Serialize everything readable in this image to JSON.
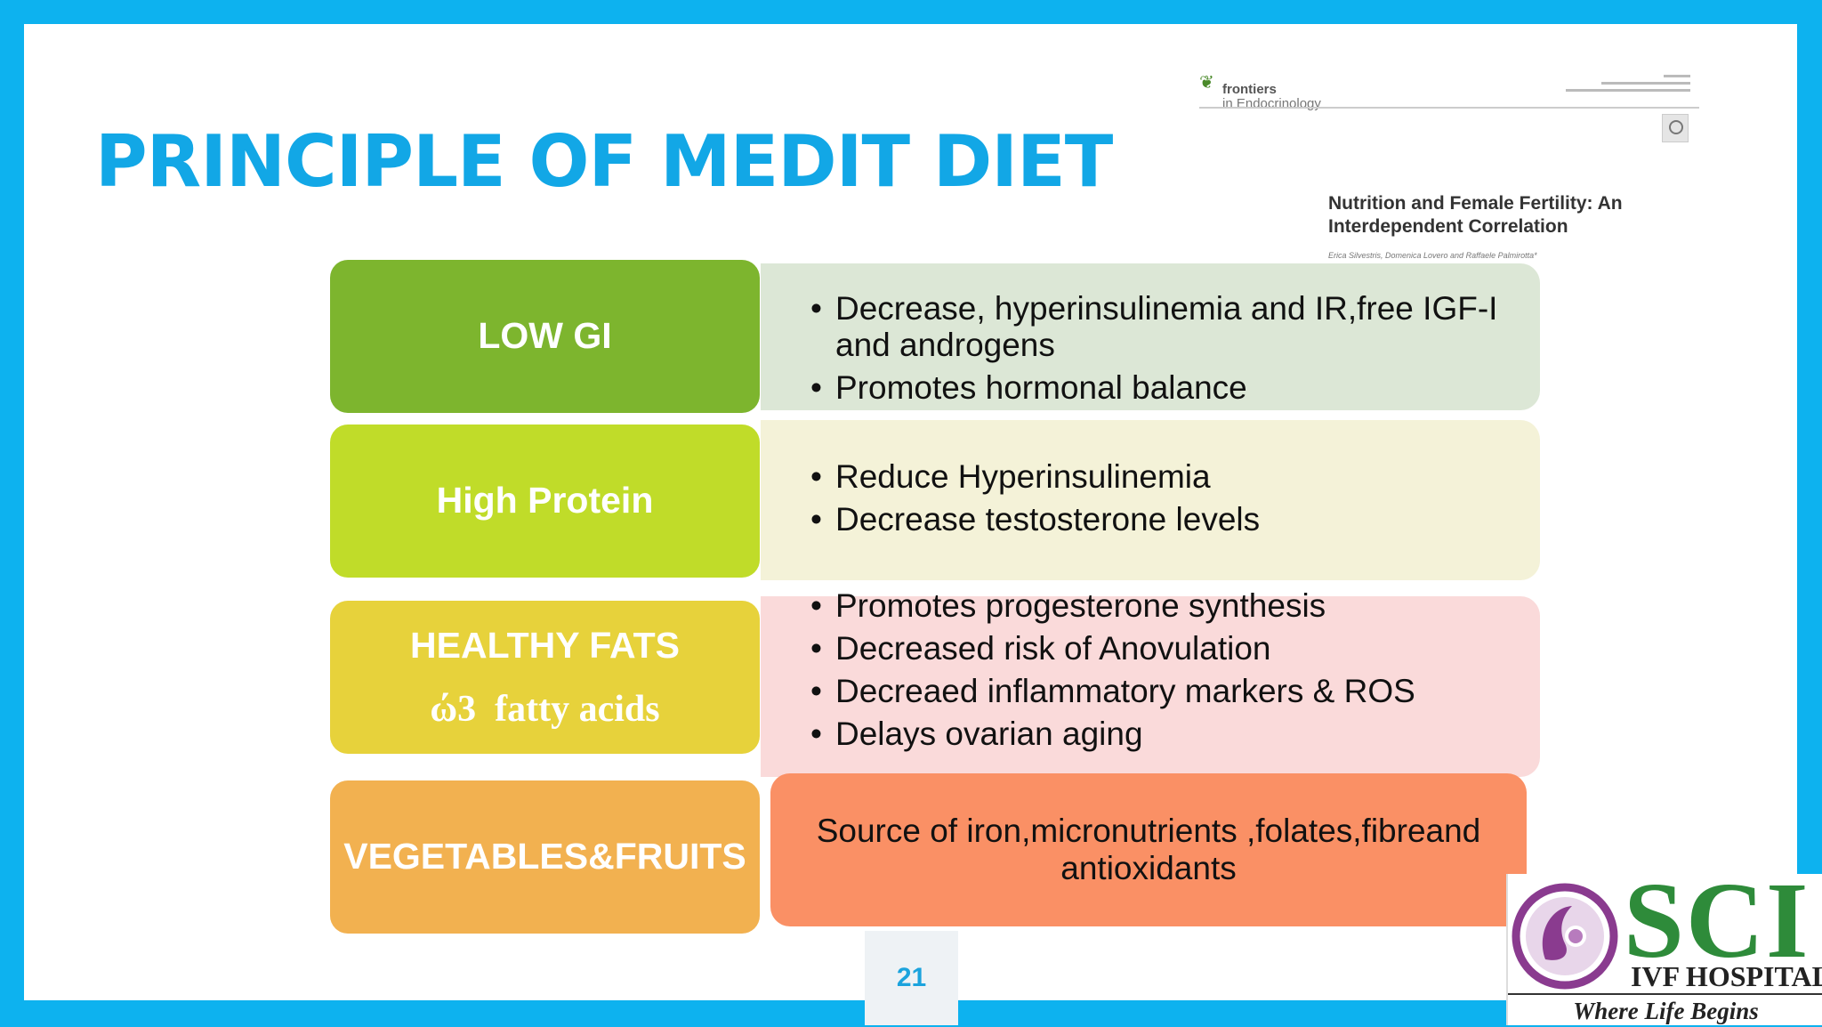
{
  "title": "PRINCIPLE OF MEDIT DIET",
  "paper": {
    "brand": "frontiers",
    "journal": "in Endocrinology",
    "title": "Nutrition and Female Fertility: An Interdependent Correlation",
    "authors": "Erica Silvestris, Domenica Lovero and Raffaele Palmirotta*"
  },
  "rows": [
    {
      "label": "LOW GI",
      "color": "#7db52e",
      "points": [
        "Decrease, hyperinsulinemia and IR,free IGF-I and androgens",
        "Promotes hormonal balance"
      ]
    },
    {
      "label": "High Protein",
      "color": "#c0dc29",
      "points": [
        "Reduce Hyperinsulinemia",
        "Decrease testosterone levels"
      ]
    },
    {
      "label": "HEALTHY FATS",
      "sublabel": "ώ3  fatty acids",
      "color": "#e7d23b",
      "points": [
        "Promotes progesterone synthesis",
        "Decreased risk of Anovulation",
        "Decreaed inflammatory markers & ROS",
        "Delays ovarian aging"
      ]
    },
    {
      "label": "VEGETABLES&FRUITS",
      "color": "#f2b150",
      "text": "Source of iron,micronutrients ,folates,fibreand antioxidants"
    }
  ],
  "page_number": "21",
  "logo": {
    "name": "SCI",
    "subtitle": "IVF HOSPITAL",
    "tagline": "Where Life Begins"
  }
}
